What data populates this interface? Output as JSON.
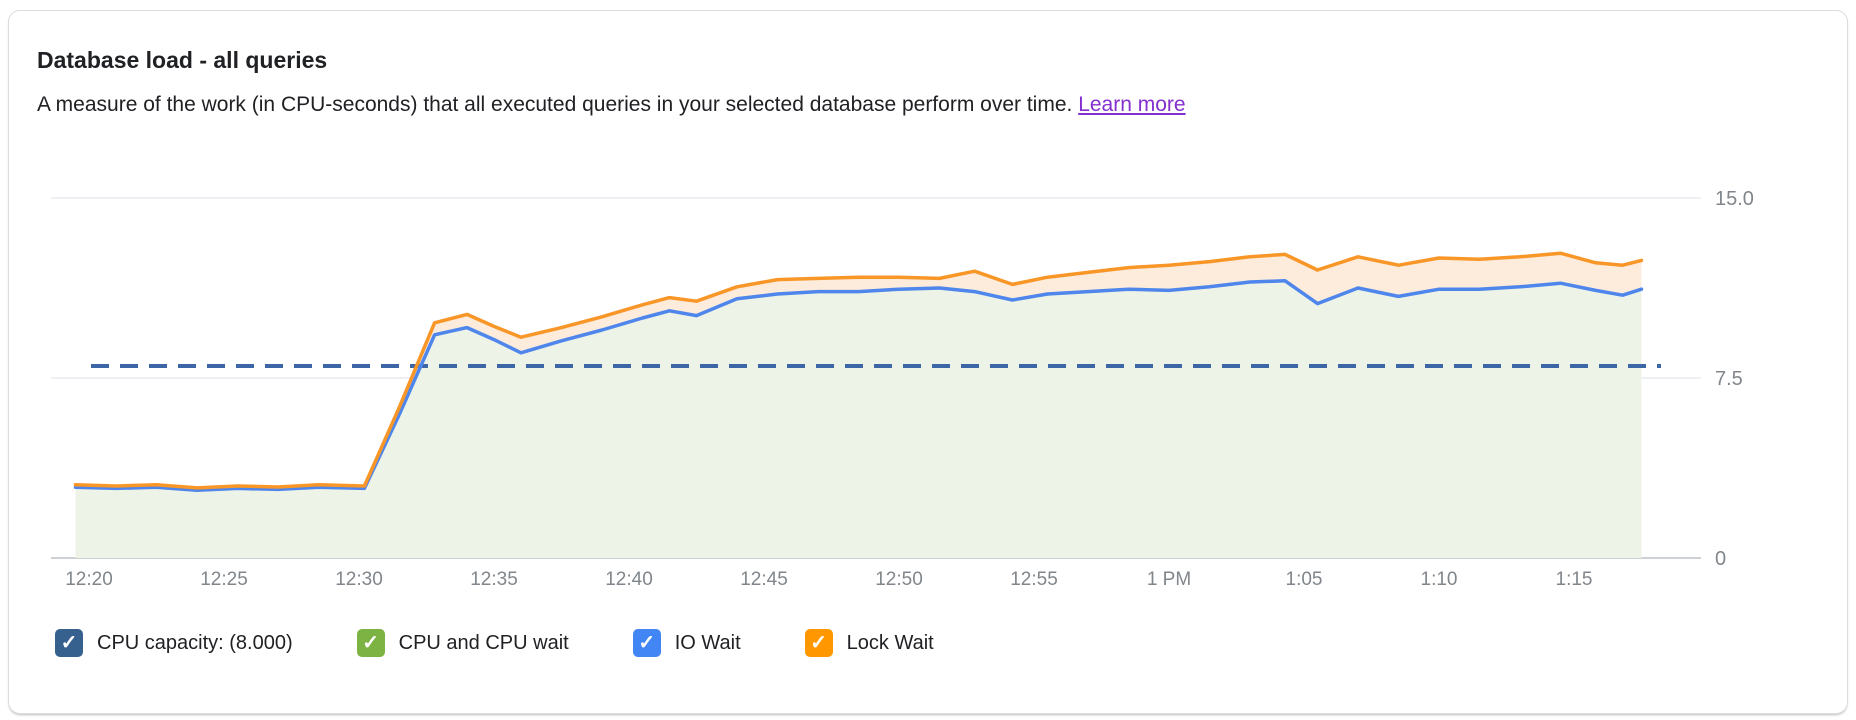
{
  "card": {
    "title": "Database load - all queries",
    "subtitle": "A measure of the work (in CPU-seconds) that all executed queries in your selected database perform over time.",
    "learn_more_label": "Learn more",
    "learn_more_color": "#8430ce"
  },
  "legend": [
    {
      "label": "CPU capacity: (8.000)",
      "color": "#36618e",
      "checked": true
    },
    {
      "label": "CPU and CPU wait",
      "color": "#7cb342",
      "checked": true
    },
    {
      "label": "IO Wait",
      "color": "#4285f4",
      "checked": true
    },
    {
      "label": "Lock Wait",
      "color": "#ff9800",
      "checked": true
    }
  ],
  "chart_data": {
    "type": "area",
    "title": "Database load - all queries",
    "note": "Stacked area chart. Blue line = top of CPU + IO Wait stack (light green fill below). Orange line = total load including Lock Wait (peach band between blue and orange). Navy dashed line = CPU capacity at 8.000.",
    "ylim": [
      0,
      15
    ],
    "grid": {
      "line_color": "#e8eaed",
      "axis_color": "#cdd1d5",
      "tick_text_color": "#80868b"
    },
    "y_ticks": [
      {
        "v": 15,
        "label": "15.0"
      },
      {
        "v": 7.5,
        "label": "7.5"
      },
      {
        "v": 0,
        "label": "0"
      }
    ],
    "x_ticks": [
      {
        "m": 20,
        "label": "12:20"
      },
      {
        "m": 25,
        "label": "12:25"
      },
      {
        "m": 30,
        "label": "12:30"
      },
      {
        "m": 35,
        "label": "12:35"
      },
      {
        "m": 40,
        "label": "12:40"
      },
      {
        "m": 45,
        "label": "12:45"
      },
      {
        "m": 50,
        "label": "12:50"
      },
      {
        "m": 55,
        "label": "12:55"
      },
      {
        "m": 60,
        "label": "1 PM"
      },
      {
        "m": 65,
        "label": "1:05"
      },
      {
        "m": 70,
        "label": "1:10"
      },
      {
        "m": 75,
        "label": "1:15"
      }
    ],
    "capacity_line": {
      "label": "CPU capacity",
      "value": 8.0,
      "color": "#3d66a6",
      "style": "dashed"
    },
    "x_minutes_after_noon": [
      19.5,
      21,
      22.5,
      24,
      25.5,
      27,
      28.5,
      30.2,
      31.5,
      32.8,
      34,
      35,
      36,
      37.5,
      39,
      40.5,
      41.5,
      42.5,
      44,
      45.5,
      47,
      48.5,
      50,
      51.5,
      52.8,
      54.2,
      55.5,
      57,
      58.5,
      60,
      61.5,
      63,
      64.3,
      65.5,
      67,
      68.5,
      70,
      71.5,
      73,
      74.5,
      75.8,
      76.8,
      77.5
    ],
    "series": [
      {
        "name": "CPU + IO Wait stack top (blue line)",
        "legend_ref": "IO Wait",
        "color": "#4e86ec",
        "fill_below": "#eef3e8",
        "values": [
          2.95,
          2.9,
          2.95,
          2.82,
          2.9,
          2.86,
          2.95,
          2.9,
          6.0,
          9.3,
          9.6,
          9.1,
          8.55,
          9.05,
          9.5,
          10.0,
          10.3,
          10.1,
          10.8,
          11.0,
          11.1,
          11.1,
          11.2,
          11.25,
          11.1,
          10.75,
          11.0,
          11.1,
          11.2,
          11.15,
          11.3,
          11.5,
          11.55,
          10.6,
          11.25,
          10.9,
          11.2,
          11.2,
          11.3,
          11.45,
          11.15,
          10.95,
          11.2
        ]
      },
      {
        "name": "Total load incl. Lock Wait (orange line)",
        "legend_ref": "Lock Wait",
        "color": "#f99628",
        "fill_below": "#fdebdb",
        "values": [
          3.05,
          3.0,
          3.05,
          2.92,
          3.0,
          2.96,
          3.05,
          3.0,
          6.3,
          9.8,
          10.15,
          9.65,
          9.2,
          9.6,
          10.05,
          10.55,
          10.85,
          10.7,
          11.3,
          11.6,
          11.65,
          11.7,
          11.7,
          11.65,
          11.95,
          11.4,
          11.7,
          11.9,
          12.1,
          12.2,
          12.35,
          12.55,
          12.65,
          12.0,
          12.55,
          12.2,
          12.5,
          12.45,
          12.55,
          12.7,
          12.3,
          12.2,
          12.4
        ]
      }
    ]
  }
}
